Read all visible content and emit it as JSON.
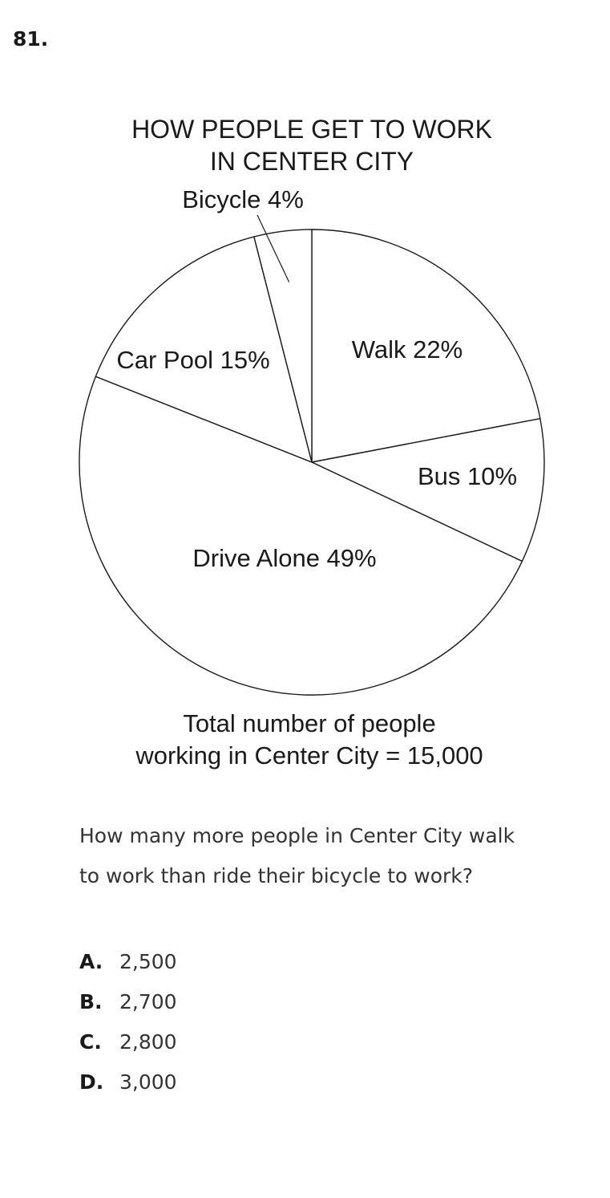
{
  "question": {
    "number": "81.",
    "text": "How many more people in Center City walk to work than ride their bicycle to work?",
    "choices": [
      {
        "letter": "A.",
        "value": "2,500"
      },
      {
        "letter": "B.",
        "value": "2,700"
      },
      {
        "letter": "C.",
        "value": "2,800"
      },
      {
        "letter": "D.",
        "value": "3,000"
      }
    ]
  },
  "chart_data": {
    "type": "pie",
    "title": [
      "HOW PEOPLE GET TO WORK",
      "IN CENTER CITY"
    ],
    "slices": [
      {
        "name": "Walk",
        "value": 22,
        "label": "Walk 22%"
      },
      {
        "name": "Bus",
        "value": 10,
        "label": "Bus 10%"
      },
      {
        "name": "Drive Alone",
        "value": 49,
        "label": "Drive Alone 49%"
      },
      {
        "name": "Car Pool",
        "value": 15,
        "label": "Car Pool 15%"
      },
      {
        "name": "Bicycle",
        "value": 4,
        "label": "Bicycle 4%"
      }
    ],
    "footnote": [
      "Total number of people",
      "working in Center City = 15,000"
    ],
    "colors": {
      "fill": "#ffffff",
      "stroke": "#1a1a1a"
    }
  }
}
